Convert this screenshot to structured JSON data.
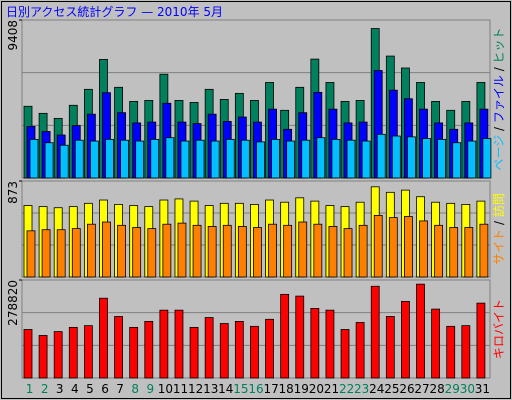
{
  "chart_data": [
    {
      "type": "bar",
      "title": "日別アクセス統計グラフ — 2010年 5月",
      "ylim": [
        0,
        9408
      ],
      "yticks": [
        9408
      ],
      "legend_separator": " / ",
      "series": [
        {
          "name": "ヒット",
          "color": "#00805c",
          "values": [
            4270,
            3850,
            3550,
            4330,
            5280,
            7060,
            5400,
            4560,
            4620,
            6180,
            4620,
            4500,
            5280,
            4680,
            5040,
            4620,
            5690,
            4030,
            5400,
            7080,
            5690,
            4560,
            4620,
            8900,
            7260,
            6550,
            5690,
            4560,
            4030,
            4560,
            5690
          ]
        },
        {
          "name": "ファイル",
          "color": "#0000ff",
          "values": [
            3070,
            2770,
            2560,
            3120,
            3800,
            5080,
            3890,
            3280,
            3330,
            4450,
            3330,
            3240,
            3800,
            3370,
            3630,
            3330,
            4100,
            2900,
            3890,
            5100,
            4100,
            3280,
            3330,
            6400,
            5230,
            4720,
            4100,
            3280,
            2900,
            3280,
            4100
          ]
        },
        {
          "name": "ページ",
          "color": "#00c0ff",
          "values": [
            2300,
            2100,
            1950,
            2250,
            2200,
            2300,
            2250,
            2200,
            2300,
            2400,
            2200,
            2250,
            2200,
            2300,
            2250,
            2150,
            2300,
            2200,
            2250,
            2400,
            2300,
            2250,
            2200,
            2600,
            2500,
            2450,
            2350,
            2300,
            2100,
            2200,
            2350
          ]
        }
      ]
    },
    {
      "type": "bar",
      "ylim": [
        0,
        873
      ],
      "yticks": [
        873
      ],
      "legend_separator": " / ",
      "series": [
        {
          "name": "訪問",
          "color": "#ffff00",
          "values": [
            650,
            640,
            630,
            640,
            670,
            700,
            660,
            650,
            640,
            700,
            710,
            690,
            650,
            670,
            670,
            660,
            700,
            680,
            720,
            690,
            650,
            640,
            680,
            820,
            770,
            790,
            730,
            680,
            670,
            660,
            690
          ]
        },
        {
          "name": "サイト",
          "color": "#ff8000",
          "values": [
            420,
            430,
            430,
            440,
            480,
            500,
            470,
            450,
            440,
            480,
            490,
            470,
            460,
            470,
            460,
            450,
            480,
            470,
            500,
            480,
            460,
            440,
            470,
            560,
            540,
            550,
            510,
            470,
            450,
            450,
            480
          ]
        }
      ]
    },
    {
      "type": "bar",
      "ylim": [
        0,
        278820
      ],
      "yticks": [
        278820
      ],
      "categories": [
        "1",
        "2",
        "3",
        "4",
        "5",
        "6",
        "7",
        "8",
        "9",
        "10",
        "11",
        "12",
        "13",
        "14",
        "15",
        "16",
        "17",
        "18",
        "19",
        "20",
        "21",
        "22",
        "23",
        "24",
        "25",
        "26",
        "27",
        "28",
        "29",
        "30",
        "31"
      ],
      "category_colors": [
        "#00805c",
        "#00805c",
        "#000000",
        "#000000",
        "#000000",
        "#000000",
        "#000000",
        "#00805c",
        "#00805c",
        "#000000",
        "#000000",
        "#000000",
        "#000000",
        "#000000",
        "#00805c",
        "#00805c",
        "#000000",
        "#000000",
        "#000000",
        "#000000",
        "#000000",
        "#00805c",
        "#00805c",
        "#000000",
        "#000000",
        "#000000",
        "#000000",
        "#000000",
        "#00805c",
        "#00805c",
        "#000000"
      ],
      "series": [
        {
          "name": "キロバイト",
          "color": "#ff0000",
          "values": [
            138000,
            121000,
            132000,
            144000,
            149000,
            227000,
            175000,
            144000,
            161000,
            193000,
            193000,
            144000,
            172000,
            155000,
            161000,
            147000,
            167000,
            238000,
            233000,
            198000,
            193000,
            138000,
            158000,
            261000,
            175000,
            218000,
            267000,
            196000,
            147000,
            149000,
            213000
          ]
        }
      ]
    }
  ]
}
